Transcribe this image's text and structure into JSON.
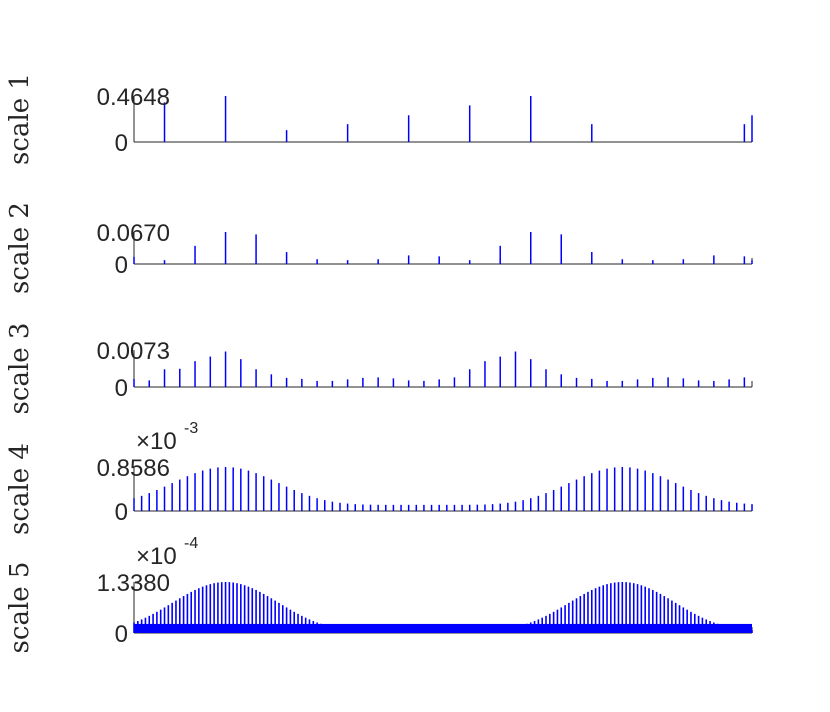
{
  "chart_data": [
    {
      "type": "stem",
      "ylabel": "scale 1",
      "ytick_labels": [
        "0",
        "0.4648"
      ],
      "ylim": [
        0,
        0.4648
      ],
      "xlim": [
        0,
        81
      ],
      "color": "#0000ff",
      "x": [
        0,
        4,
        12,
        20,
        28,
        36,
        44,
        52,
        60,
        68,
        80,
        81
      ],
      "values": [
        0.0,
        0.4,
        0.4648,
        0.12,
        0.18,
        0.27,
        0.37,
        0.4648,
        0.18,
        0.0,
        0.18,
        0.27
      ]
    },
    {
      "type": "stem",
      "ylabel": "scale 2",
      "ytick_labels": [
        "0",
        "0.0670"
      ],
      "ylim": [
        0,
        0.067
      ],
      "xlim": [
        0,
        81
      ],
      "color": "#0000ff",
      "x": [
        0,
        4,
        8,
        12,
        16,
        20,
        24,
        28,
        32,
        36,
        40,
        44,
        48,
        52,
        56,
        60,
        64,
        68,
        72,
        76,
        80,
        81
      ],
      "values": [
        0.015,
        0.008,
        0.038,
        0.067,
        0.062,
        0.025,
        0.01,
        0.008,
        0.01,
        0.018,
        0.016,
        0.008,
        0.038,
        0.067,
        0.062,
        0.025,
        0.01,
        0.008,
        0.01,
        0.018,
        0.016,
        0.008
      ]
    },
    {
      "type": "stem",
      "ylabel": "scale 3",
      "ytick_labels": [
        "0",
        "0.0073"
      ],
      "ylim": [
        0,
        0.0073
      ],
      "xlim": [
        0,
        81
      ],
      "color": "#0000ff",
      "x": [
        0,
        2,
        4,
        6,
        8,
        10,
        12,
        14,
        16,
        18,
        20,
        22,
        24,
        26,
        28,
        30,
        32,
        34,
        36,
        38,
        40,
        42,
        44,
        46,
        48,
        50,
        52,
        54,
        56,
        58,
        60,
        62,
        64,
        66,
        68,
        70,
        72,
        74,
        76,
        78,
        80
      ],
      "values": [
        0.0016,
        0.0013,
        0.0035,
        0.0036,
        0.0051,
        0.006,
        0.007,
        0.0055,
        0.0035,
        0.0025,
        0.0018,
        0.0016,
        0.0012,
        0.0012,
        0.0015,
        0.0018,
        0.0019,
        0.0017,
        0.0013,
        0.0012,
        0.0015,
        0.0019,
        0.0035,
        0.0051,
        0.006,
        0.007,
        0.0055,
        0.0035,
        0.0025,
        0.0018,
        0.0016,
        0.0012,
        0.0012,
        0.0015,
        0.0018,
        0.0019,
        0.0017,
        0.0013,
        0.0012,
        0.0015,
        0.0019
      ]
    },
    {
      "type": "stem",
      "ylabel": "scale 4",
      "ytick_labels": [
        "0",
        "0.8586"
      ],
      "multiplier_base": "×10",
      "multiplier_exponent": "-3",
      "ylim": [
        0,
        0.8586
      ],
      "xlim": [
        0,
        81
      ],
      "color": "#0000ff",
      "period": 52,
      "peak_at": 12,
      "min_value": 0.12,
      "max_value": 0.8586
    },
    {
      "type": "stem",
      "ylabel": "scale 5",
      "ytick_labels": [
        "0",
        "1.3380"
      ],
      "multiplier_base": "×10",
      "multiplier_exponent": "-4",
      "ylim": [
        0,
        1.338
      ],
      "xlim": [
        0,
        81
      ],
      "color": "#0000ff",
      "period": 52,
      "peak_at": 12,
      "min_value": 0.05,
      "max_value": 1.338
    }
  ]
}
